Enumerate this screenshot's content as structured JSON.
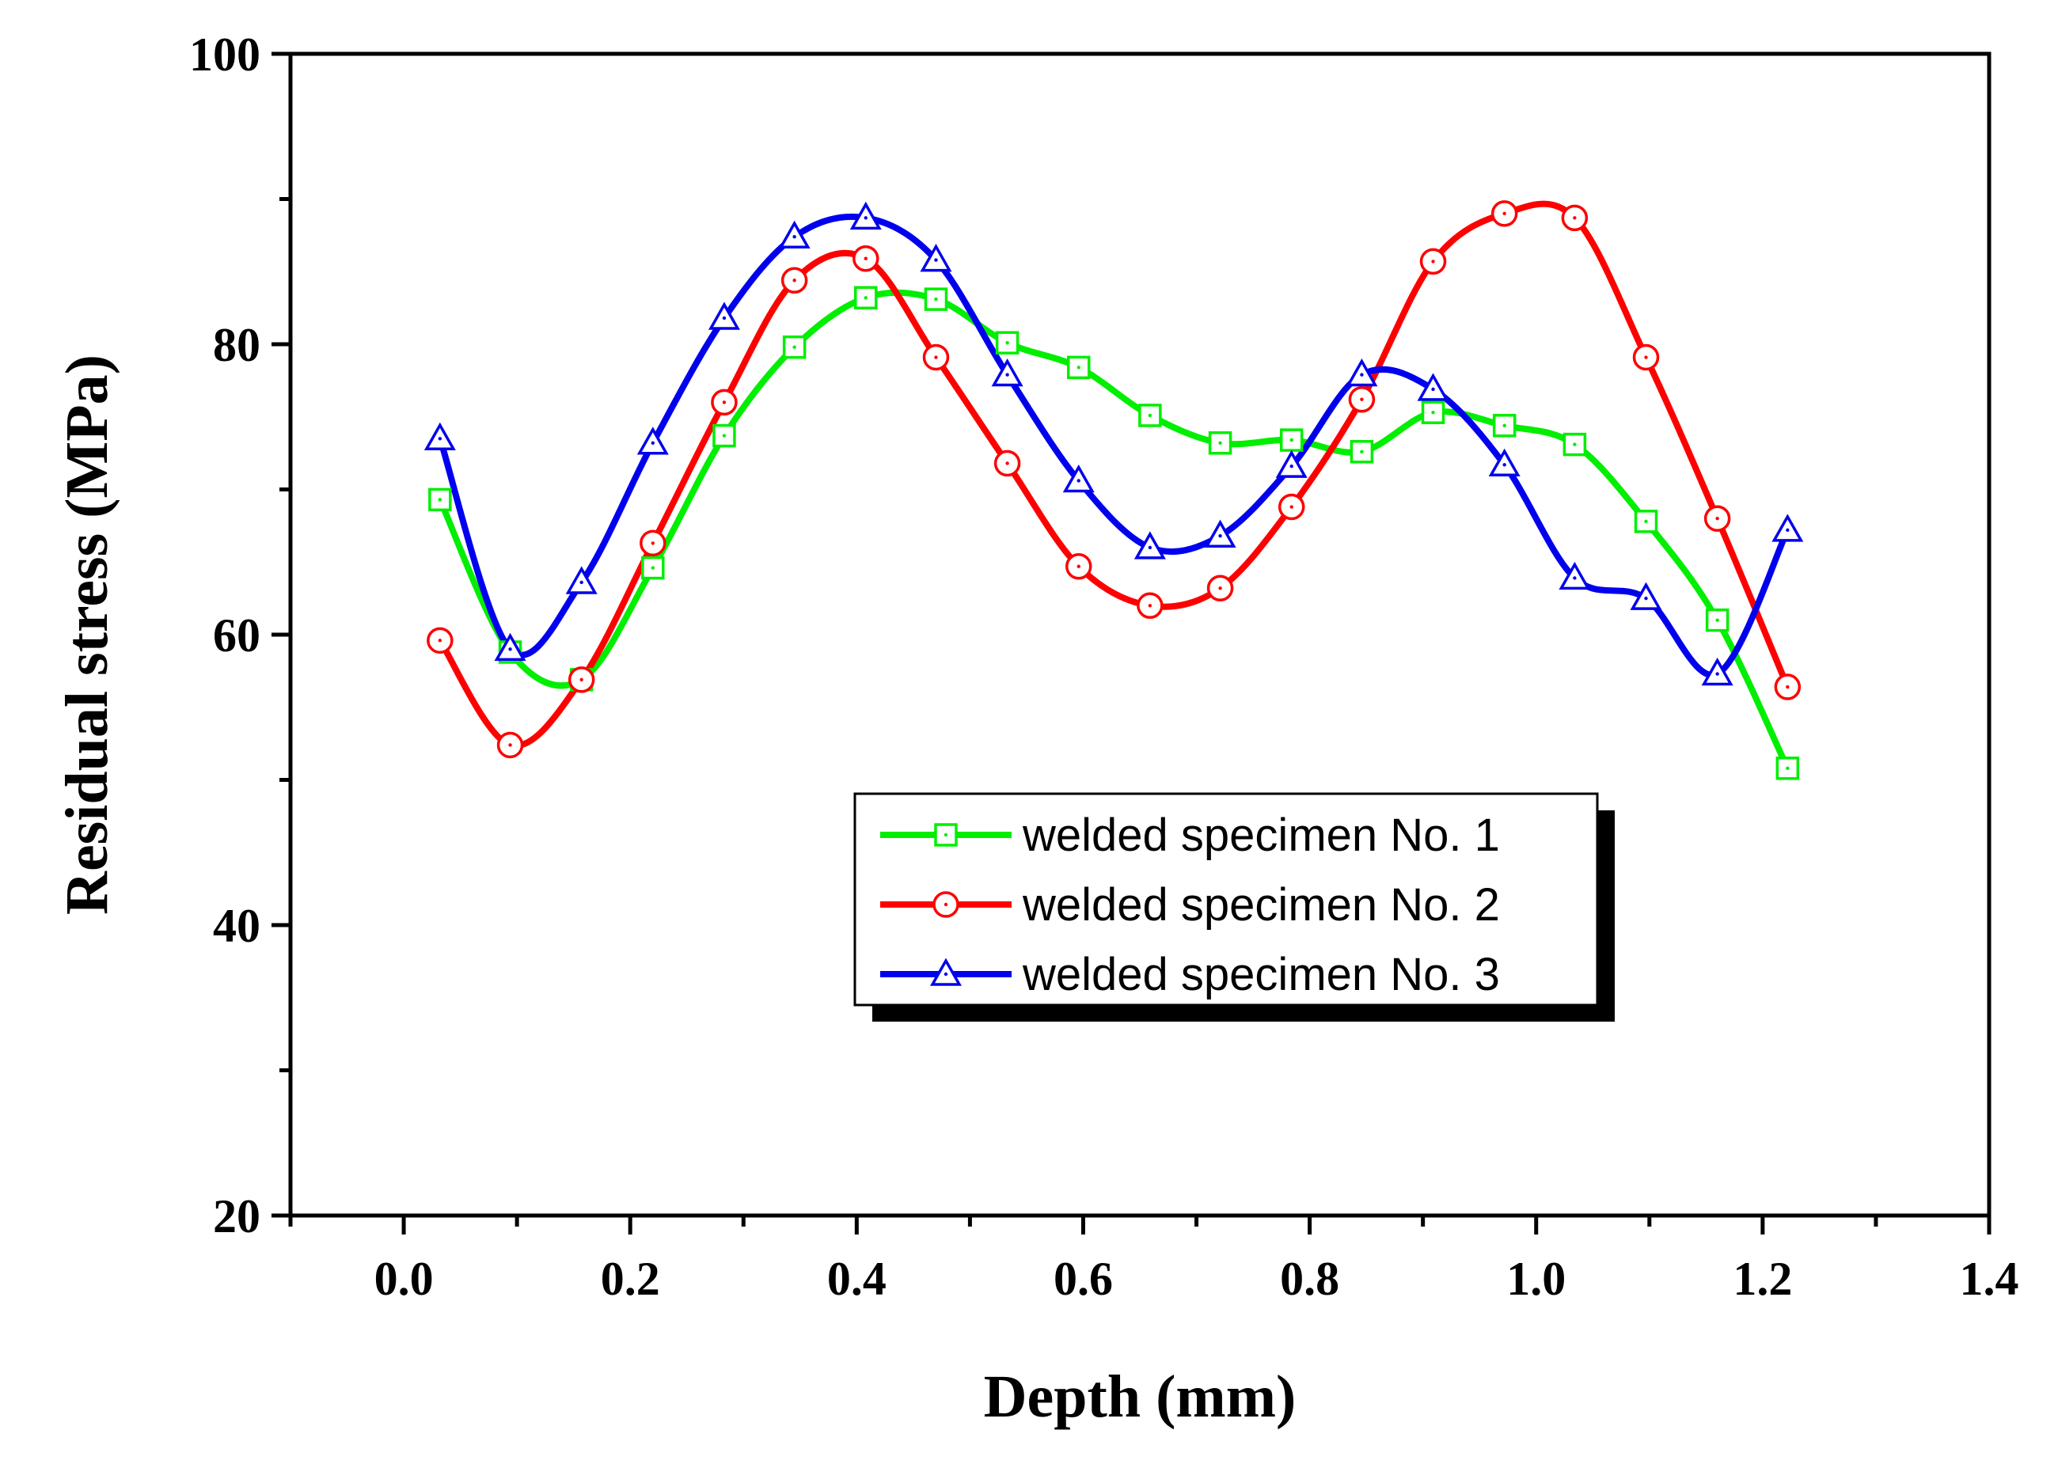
{
  "chart_data": {
    "type": "line",
    "title": "",
    "xlabel": "Depth (mm)",
    "ylabel": "Residual stress (MPa)",
    "xlim": [
      -0.1,
      1.4
    ],
    "ylim": [
      20,
      100
    ],
    "xticks": [
      0.0,
      0.2,
      0.4,
      0.6,
      0.8,
      1.0,
      1.2,
      1.4
    ],
    "xtick_labels": [
      "0.0",
      "0.2",
      "0.4",
      "0.6",
      "0.8",
      "1.0",
      "1.2",
      "1.4"
    ],
    "yticks": [
      20,
      40,
      60,
      80,
      100
    ],
    "ytick_labels": [
      "20",
      "40",
      "60",
      "80",
      "100"
    ],
    "grid": false,
    "legend_position": "center-right",
    "series": [
      {
        "name": "welded specimen No. 1",
        "color": "#00ee00",
        "marker": "square",
        "x": [
          0.032,
          0.094,
          0.157,
          0.22,
          0.283,
          0.345,
          0.408,
          0.47,
          0.533,
          0.596,
          0.659,
          0.721,
          0.784,
          0.846,
          0.909,
          0.972,
          1.034,
          1.097,
          1.16,
          1.222
        ],
        "values": [
          69.3,
          58.8,
          56.9,
          64.6,
          73.7,
          79.8,
          83.2,
          83.1,
          80.1,
          78.4,
          75.1,
          73.2,
          73.4,
          72.6,
          75.3,
          74.4,
          73.1,
          67.8,
          61.0,
          50.8
        ]
      },
      {
        "name": "welded specimen No. 2",
        "color": "#ff0000",
        "marker": "circle",
        "x": [
          0.032,
          0.094,
          0.157,
          0.22,
          0.283,
          0.345,
          0.408,
          0.47,
          0.533,
          0.596,
          0.659,
          0.721,
          0.784,
          0.846,
          0.909,
          0.972,
          1.034,
          1.097,
          1.16,
          1.222
        ],
        "values": [
          59.6,
          52.4,
          56.9,
          66.3,
          76.0,
          84.4,
          85.9,
          79.1,
          71.8,
          64.7,
          62.0,
          63.2,
          68.8,
          76.2,
          85.7,
          89.0,
          88.7,
          79.1,
          68.0,
          56.4
        ]
      },
      {
        "name": "welded specimen No. 3",
        "color": "#0000ee",
        "marker": "triangle",
        "x": [
          0.032,
          0.094,
          0.157,
          0.22,
          0.283,
          0.345,
          0.408,
          0.47,
          0.533,
          0.596,
          0.659,
          0.721,
          0.784,
          0.846,
          0.909,
          0.972,
          1.034,
          1.097,
          1.16,
          1.222
        ],
        "values": [
          73.5,
          59.0,
          63.6,
          73.2,
          81.8,
          87.4,
          88.7,
          85.8,
          77.9,
          70.6,
          66.0,
          66.8,
          71.6,
          77.9,
          76.9,
          71.7,
          63.9,
          62.5,
          57.3,
          67.2
        ]
      }
    ]
  }
}
